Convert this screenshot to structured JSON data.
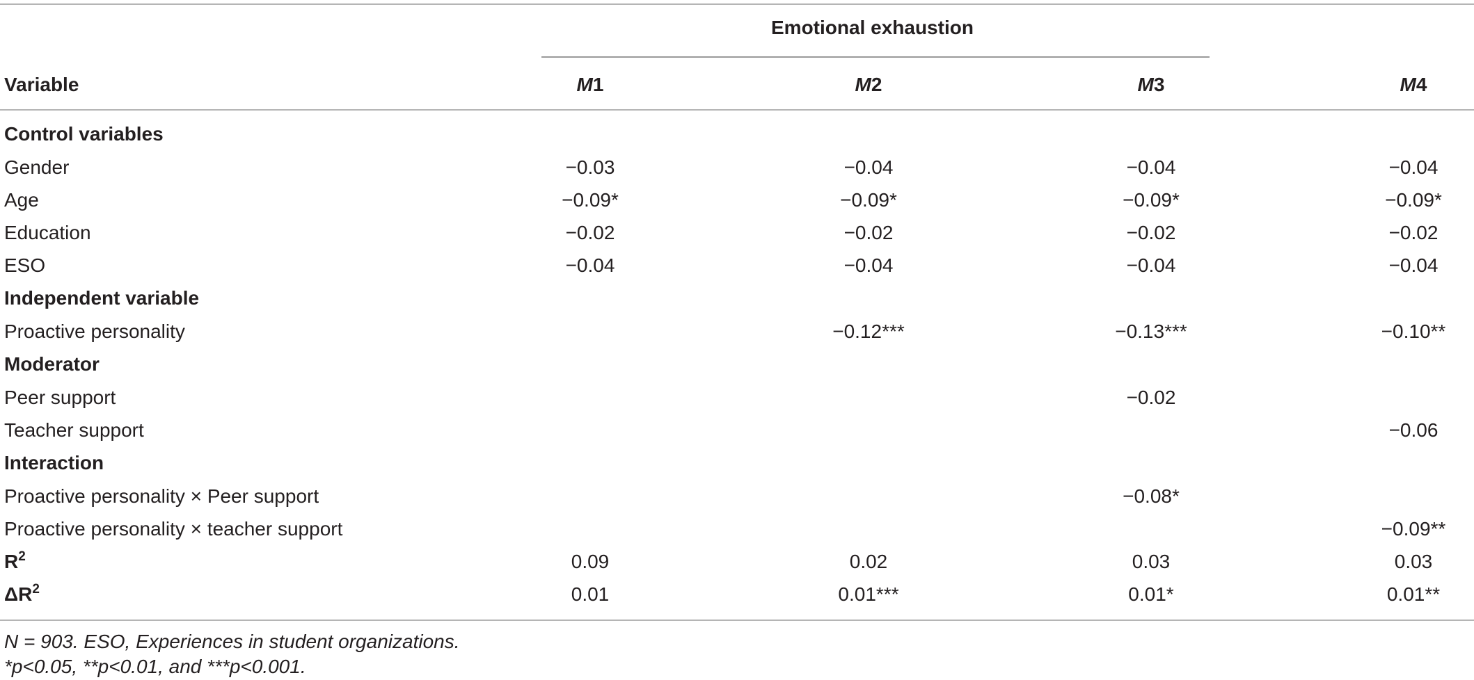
{
  "table": {
    "group_header": "Emotional exhaustion",
    "variable_header": "Variable",
    "models": [
      {
        "letter": "M",
        "num": "1"
      },
      {
        "letter": "M",
        "num": "2"
      },
      {
        "letter": "M",
        "num": "3"
      },
      {
        "letter": "M",
        "num": "4"
      }
    ],
    "sections": {
      "control": "Control variables",
      "independent": "Independent variable",
      "moderator": "Moderator",
      "interaction": "Interaction"
    },
    "rows": [
      {
        "label": "Gender",
        "values": [
          "−0.03",
          "−0.04",
          "−0.04",
          "−0.04"
        ]
      },
      {
        "label": "Age",
        "values": [
          "−0.09*",
          "−0.09*",
          "−0.09*",
          "−0.09*"
        ]
      },
      {
        "label": "Education",
        "values": [
          "−0.02",
          "−0.02",
          "−0.02",
          "−0.02"
        ]
      },
      {
        "label": "ESO",
        "values": [
          "−0.04",
          "−0.04",
          "−0.04",
          "−0.04"
        ]
      },
      {
        "label": "Proactive personality",
        "values": [
          "",
          "−0.12***",
          "−0.13***",
          "−0.10**"
        ]
      },
      {
        "label": "Peer support",
        "values": [
          "",
          "",
          "−0.02",
          ""
        ]
      },
      {
        "label": "Teacher support",
        "values": [
          "",
          "",
          "",
          "−0.06"
        ]
      },
      {
        "label": "Proactive personality × Peer support",
        "values": [
          "",
          "",
          "−0.08*",
          ""
        ]
      },
      {
        "label": "Proactive personality × teacher support",
        "values": [
          "",
          "",
          "",
          "−0.09**"
        ]
      }
    ],
    "r2": {
      "label": "R",
      "sup": "2",
      "values": [
        "0.09",
        "0.02",
        "0.03",
        "0.03"
      ]
    },
    "delta_r2": {
      "label": "ΔR",
      "sup": "2",
      "values": [
        "0.01",
        "0.01***",
        "0.01*",
        "0.01**"
      ]
    }
  },
  "footnotes": {
    "line1": "N = 903. ESO, Experiences in student organizations.",
    "line2": "*p<0.05, **p<0.01, and ***p<0.001."
  }
}
